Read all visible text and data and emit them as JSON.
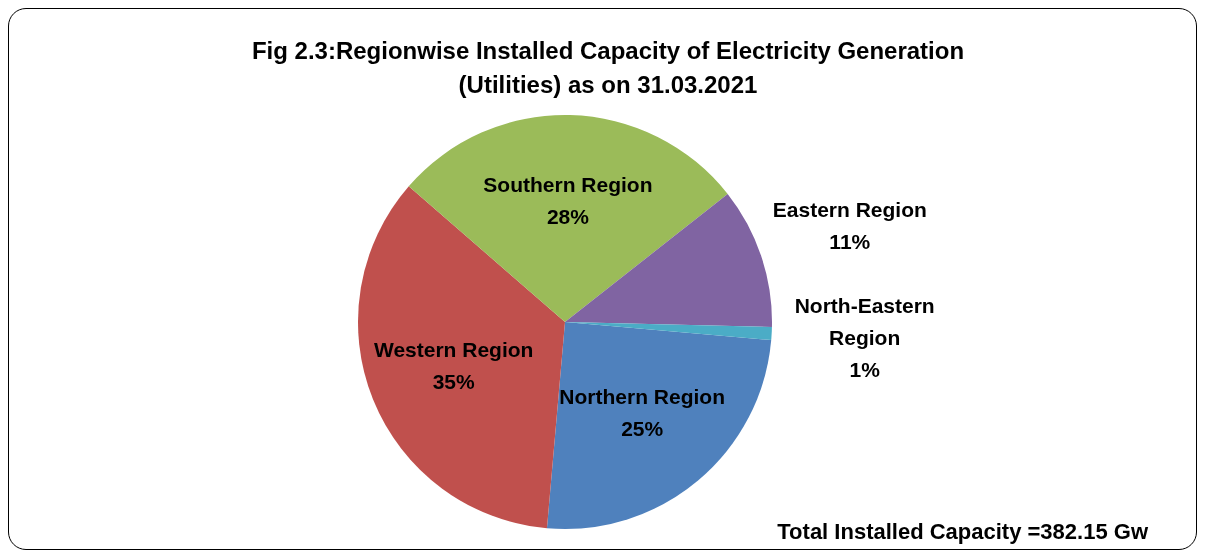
{
  "chart_data": {
    "type": "pie",
    "title": "Fig 2.3:Regionwise Installed Capacity of Electricity Generation (Utilities) as on 31.03.2021",
    "categories": [
      "Northern Region",
      "Western Region",
      "Southern Region",
      "Eastern Region",
      "North-Eastern Region"
    ],
    "values": [
      25,
      35,
      28,
      11,
      1
    ],
    "colors": [
      "#4f81bd",
      "#c0504d",
      "#9bbb59",
      "#8064a2",
      "#4bacc6"
    ],
    "value_labels": [
      "25%",
      "35%",
      "28%",
      "11%",
      "1%"
    ],
    "legend": false,
    "annotations": [
      "Total Installed Capacity =382.15 Gw"
    ]
  }
}
